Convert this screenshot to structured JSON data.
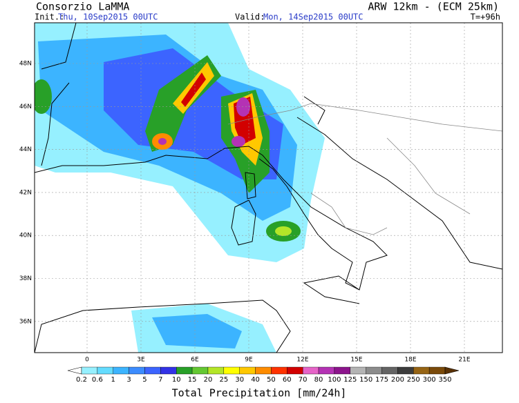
{
  "header": {
    "title": "Consorzio LaMMA",
    "model": "ARW 12km - (ECM 25km)",
    "init_label": "Init.:",
    "init_date": "Thu, 10Sep2015 00UTC",
    "valid_label": "Valid:",
    "valid_date": "Mon, 14Sep2015 00UTC",
    "lead_time": "T=+96h"
  },
  "map": {
    "lat_labels": [
      "48N",
      "46N",
      "44N",
      "42N",
      "40N",
      "38N",
      "36N"
    ],
    "lon_labels": [
      "0",
      "3E",
      "6E",
      "9E",
      "12E",
      "15E",
      "18E",
      "21E"
    ]
  },
  "colorbar": {
    "title": "Total Precipitation [mm/24h]",
    "labels": [
      "0.2",
      "0.6",
      "1",
      "3",
      "5",
      "7",
      "10",
      "15",
      "20",
      "25",
      "30",
      "40",
      "50",
      "60",
      "70",
      "80",
      "100",
      "125",
      "150",
      "175",
      "200",
      "250",
      "300",
      "350"
    ],
    "low_color": "#ffffff",
    "high_color": "#5a3205",
    "colors": [
      "#96f0ff",
      "#64dcff",
      "#3cb4ff",
      "#3c8cff",
      "#3c64ff",
      "#3232e6",
      "#28a028",
      "#64c832",
      "#b4e628",
      "#ffff00",
      "#ffc800",
      "#ff8c00",
      "#ff3200",
      "#d20000",
      "#e664c8",
      "#b432b4",
      "#8c148c",
      "#b4b4b4",
      "#8c8c8c",
      "#646464",
      "#3c3c3c",
      "#966414",
      "#7a4a0a"
    ]
  }
}
